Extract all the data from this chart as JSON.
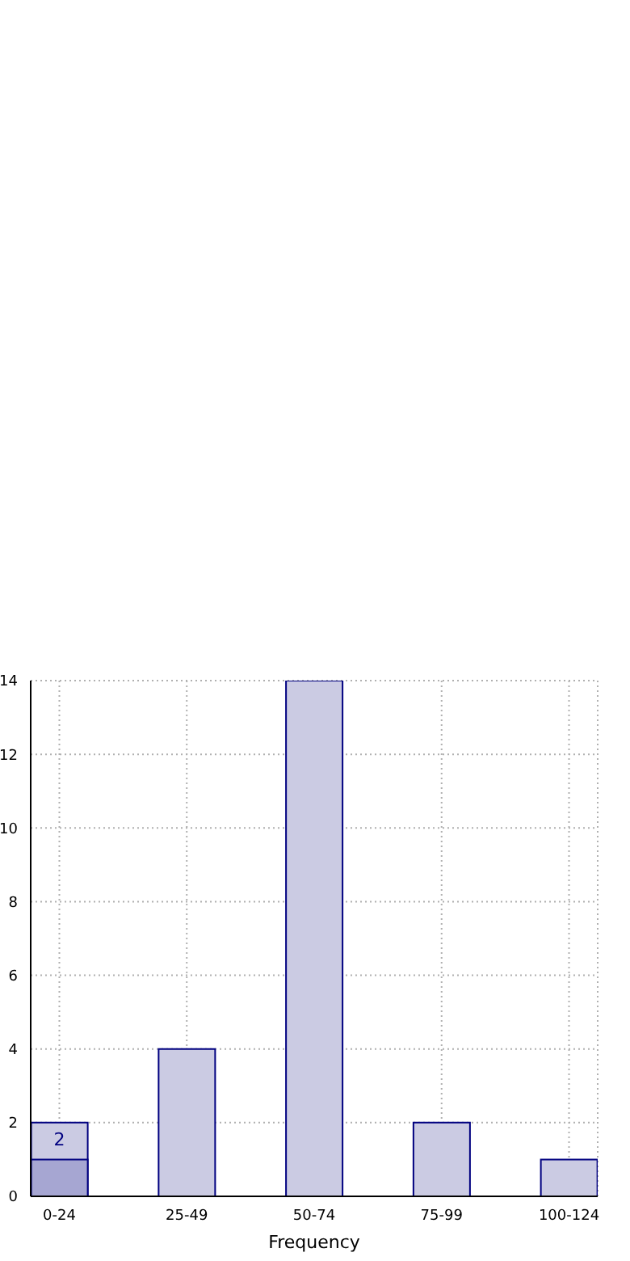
{
  "chart_data": {
    "type": "bar",
    "xlabel": "Frequency",
    "categories": [
      "0-24",
      "25-49",
      "50-74",
      "75-99",
      "100-124"
    ],
    "series": [
      {
        "color": "#cbcbe3",
        "values": [
          2,
          4,
          14,
          2,
          1
        ],
        "value_labels": [
          "2",
          null,
          null,
          null,
          null
        ]
      },
      {
        "color": "#a6a6d2",
        "values": [
          1,
          null,
          null,
          null,
          null
        ]
      }
    ],
    "ylim": [
      0,
      14
    ],
    "yticks": [
      0,
      2,
      4,
      6,
      8,
      10,
      12,
      14
    ],
    "grid": true,
    "legend": false
  }
}
